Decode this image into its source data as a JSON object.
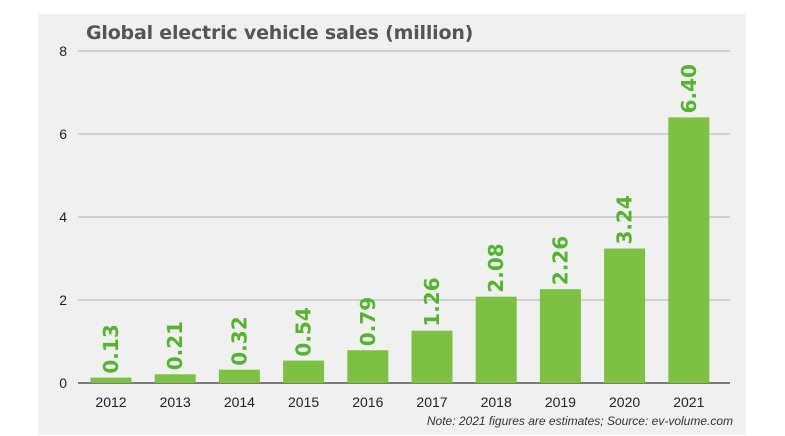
{
  "chart_data": {
    "type": "bar",
    "title": "Global electric vehicle sales (million)",
    "categories": [
      "2012",
      "2013",
      "2014",
      "2015",
      "2016",
      "2017",
      "2018",
      "2019",
      "2020",
      "2021"
    ],
    "values": [
      0.13,
      0.21,
      0.32,
      0.54,
      0.79,
      1.26,
      2.08,
      2.26,
      3.24,
      6.4
    ],
    "value_labels": [
      "0.13",
      "0.21",
      "0.32",
      "0.54",
      "0.79",
      "1.26",
      "2.08",
      "2.26",
      "3.24",
      "6.40"
    ],
    "yticks": [
      "0",
      "2",
      "4",
      "6",
      "8"
    ],
    "ylim": [
      0,
      8
    ],
    "xlabel": "",
    "ylabel": "",
    "grid": true,
    "bar_color": "#7cc142",
    "label_color": "#52b52c",
    "note": "Note: 2021 figures are estimates; Source: ev-volume.com"
  }
}
